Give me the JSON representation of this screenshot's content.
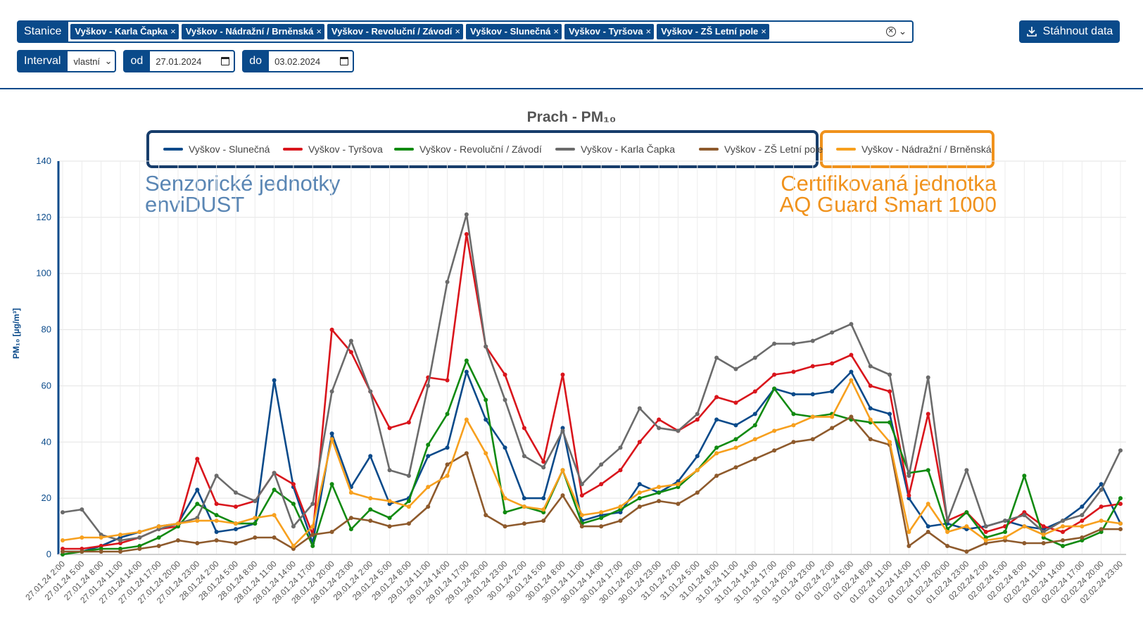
{
  "filters": {
    "stations_label": "Stanice",
    "stations": [
      "Vyškov - Karla Čapka",
      "Vyškov - Nádražní / Brněnská",
      "Vyškov - Revoluční / Závodí",
      "Vyškov - Slunečná",
      "Vyškov - Tyršova",
      "Vyškov - ZŠ Letní pole"
    ],
    "chip_remove": "×",
    "interval_label": "Interval",
    "interval_value": "vlastní",
    "from_label": "od",
    "from_value": "27.01.2024",
    "to_label": "do",
    "to_value": "03.02.2024"
  },
  "download_label": "Stáhnout data",
  "annotations": {
    "sensor_line1": "Senzorické jednotky",
    "sensor_line2": "enviDUST",
    "cert_line1": "Certifikovaná jednotka",
    "cert_line2": "AQ Guard Smart 1000"
  },
  "colors": {
    "brand": "#0a4a8a",
    "sensor_frame": "#173d6b",
    "cert_frame": "#f0921c"
  },
  "chart_data": {
    "type": "line",
    "title": "Prach - PM₁₀",
    "ylabel": "PM₁₀ [µg/m³]",
    "ylim": [
      0,
      140
    ],
    "yticks": [
      0,
      20,
      40,
      60,
      80,
      100,
      120,
      140
    ],
    "grid": true,
    "legend_position": "top",
    "x": [
      "27.01.24 2:00",
      "27.01.24 5:00",
      "27.01.24 8:00",
      "27.01.24 11:00",
      "27.01.24 14:00",
      "27.01.24 17:00",
      "27.01.24 20:00",
      "27.01.24 23:00",
      "28.01.24 2:00",
      "28.01.24 5:00",
      "28.01.24 8:00",
      "28.01.24 11:00",
      "28.01.24 14:00",
      "28.01.24 17:00",
      "28.01.24 20:00",
      "28.01.24 23:00",
      "29.01.24 2:00",
      "29.01.24 5:00",
      "29.01.24 8:00",
      "29.01.24 11:00",
      "29.01.24 14:00",
      "29.01.24 17:00",
      "29.01.24 20:00",
      "29.01.24 23:00",
      "30.01.24 2:00",
      "30.01.24 5:00",
      "30.01.24 8:00",
      "30.01.24 11:00",
      "30.01.24 14:00",
      "30.01.24 17:00",
      "30.01.24 20:00",
      "30.01.24 23:00",
      "31.01.24 2:00",
      "31.01.24 5:00",
      "31.01.24 8:00",
      "31.01.24 11:00",
      "31.01.24 14:00",
      "31.01.24 17:00",
      "31.01.24 20:00",
      "31.01.24 23:00",
      "01.02.24 2:00",
      "01.02.24 5:00",
      "01.02.24 8:00",
      "01.02.24 11:00",
      "01.02.24 14:00",
      "01.02.24 17:00",
      "01.02.24 20:00",
      "01.02.24 23:00",
      "02.02.24 2:00",
      "02.02.24 5:00",
      "02.02.24 8:00",
      "02.02.24 11:00",
      "02.02.24 14:00",
      "02.02.24 17:00",
      "02.02.24 20:00",
      "02.02.24 23:00"
    ],
    "series": [
      {
        "name": "Vyškov - Slunečná",
        "color": "#0a4a8a",
        "group": "sensor",
        "values": [
          1,
          1,
          3,
          6,
          8,
          10,
          11,
          23,
          8,
          9,
          11,
          62,
          24,
          4,
          43,
          24,
          35,
          18,
          20,
          35,
          38,
          65,
          48,
          38,
          20,
          20,
          45,
          12,
          14,
          15,
          25,
          22,
          26,
          35,
          48,
          46,
          50,
          59,
          57,
          57,
          58,
          65,
          52,
          50,
          20,
          10,
          11,
          9,
          10,
          12,
          10,
          9,
          12,
          17,
          25,
          11
        ]
      },
      {
        "name": "Vyškov - Tyršova",
        "color": "#d9151c",
        "group": "sensor",
        "values": [
          2,
          2,
          3,
          4,
          6,
          9,
          10,
          34,
          18,
          17,
          19,
          29,
          25,
          7,
          80,
          72,
          58,
          45,
          47,
          63,
          62,
          114,
          74,
          64,
          45,
          33,
          64,
          21,
          25,
          30,
          40,
          48,
          44,
          48,
          56,
          54,
          58,
          64,
          65,
          67,
          68,
          71,
          60,
          58,
          21,
          50,
          12,
          15,
          8,
          10,
          15,
          10,
          8,
          12,
          17,
          18
        ]
      },
      {
        "name": "Vyškov - Revoluční / Závodí",
        "color": "#118a11",
        "group": "sensor",
        "values": [
          0,
          1,
          2,
          2,
          3,
          6,
          10,
          18,
          14,
          11,
          11,
          23,
          18,
          3,
          25,
          9,
          16,
          13,
          19,
          39,
          50,
          69,
          55,
          15,
          17,
          15,
          30,
          11,
          13,
          16,
          20,
          22,
          24,
          30,
          38,
          41,
          46,
          59,
          50,
          49,
          50,
          48,
          47,
          47,
          29,
          30,
          9,
          15,
          6,
          8,
          28,
          6,
          3,
          5,
          8,
          20
        ]
      },
      {
        "name": "Vyškov - Karla Čapka",
        "color": "#6b6b6b",
        "group": "sensor",
        "values": [
          15,
          16,
          7,
          5,
          6,
          9,
          11,
          13,
          28,
          22,
          19,
          29,
          10,
          18,
          58,
          76,
          58,
          30,
          28,
          60,
          97,
          121,
          74,
          55,
          35,
          31,
          44,
          25,
          32,
          38,
          52,
          45,
          44,
          50,
          70,
          66,
          70,
          75,
          75,
          76,
          79,
          82,
          67,
          64,
          28,
          63,
          12,
          30,
          10,
          12,
          14,
          8,
          12,
          14,
          23,
          37
        ]
      },
      {
        "name": "Vyškov - ZŠ Letní pole",
        "color": "#8e5a2c",
        "group": "sensor",
        "values": [
          1,
          1,
          1,
          1,
          2,
          3,
          5,
          4,
          5,
          4,
          6,
          6,
          2,
          7,
          8,
          13,
          12,
          10,
          11,
          17,
          32,
          36,
          14,
          10,
          11,
          12,
          21,
          10,
          10,
          12,
          17,
          19,
          18,
          22,
          28,
          31,
          34,
          37,
          40,
          41,
          45,
          49,
          41,
          39,
          3,
          8,
          3,
          1,
          4,
          5,
          4,
          4,
          5,
          6,
          9,
          9
        ]
      },
      {
        "name": "Vyškov - Nádražní / Brněnská",
        "color": "#f7a01e",
        "group": "certified",
        "values": [
          5,
          6,
          6,
          7,
          8,
          10,
          11,
          12,
          12,
          11,
          13,
          14,
          3,
          10,
          41,
          22,
          20,
          19,
          17,
          24,
          28,
          48,
          36,
          20,
          17,
          16,
          30,
          14,
          15,
          17,
          22,
          24,
          25,
          30,
          36,
          38,
          41,
          44,
          46,
          49,
          49,
          62,
          48,
          40,
          8,
          18,
          8,
          10,
          5,
          6,
          10,
          7,
          10,
          10,
          12,
          11
        ]
      }
    ]
  }
}
